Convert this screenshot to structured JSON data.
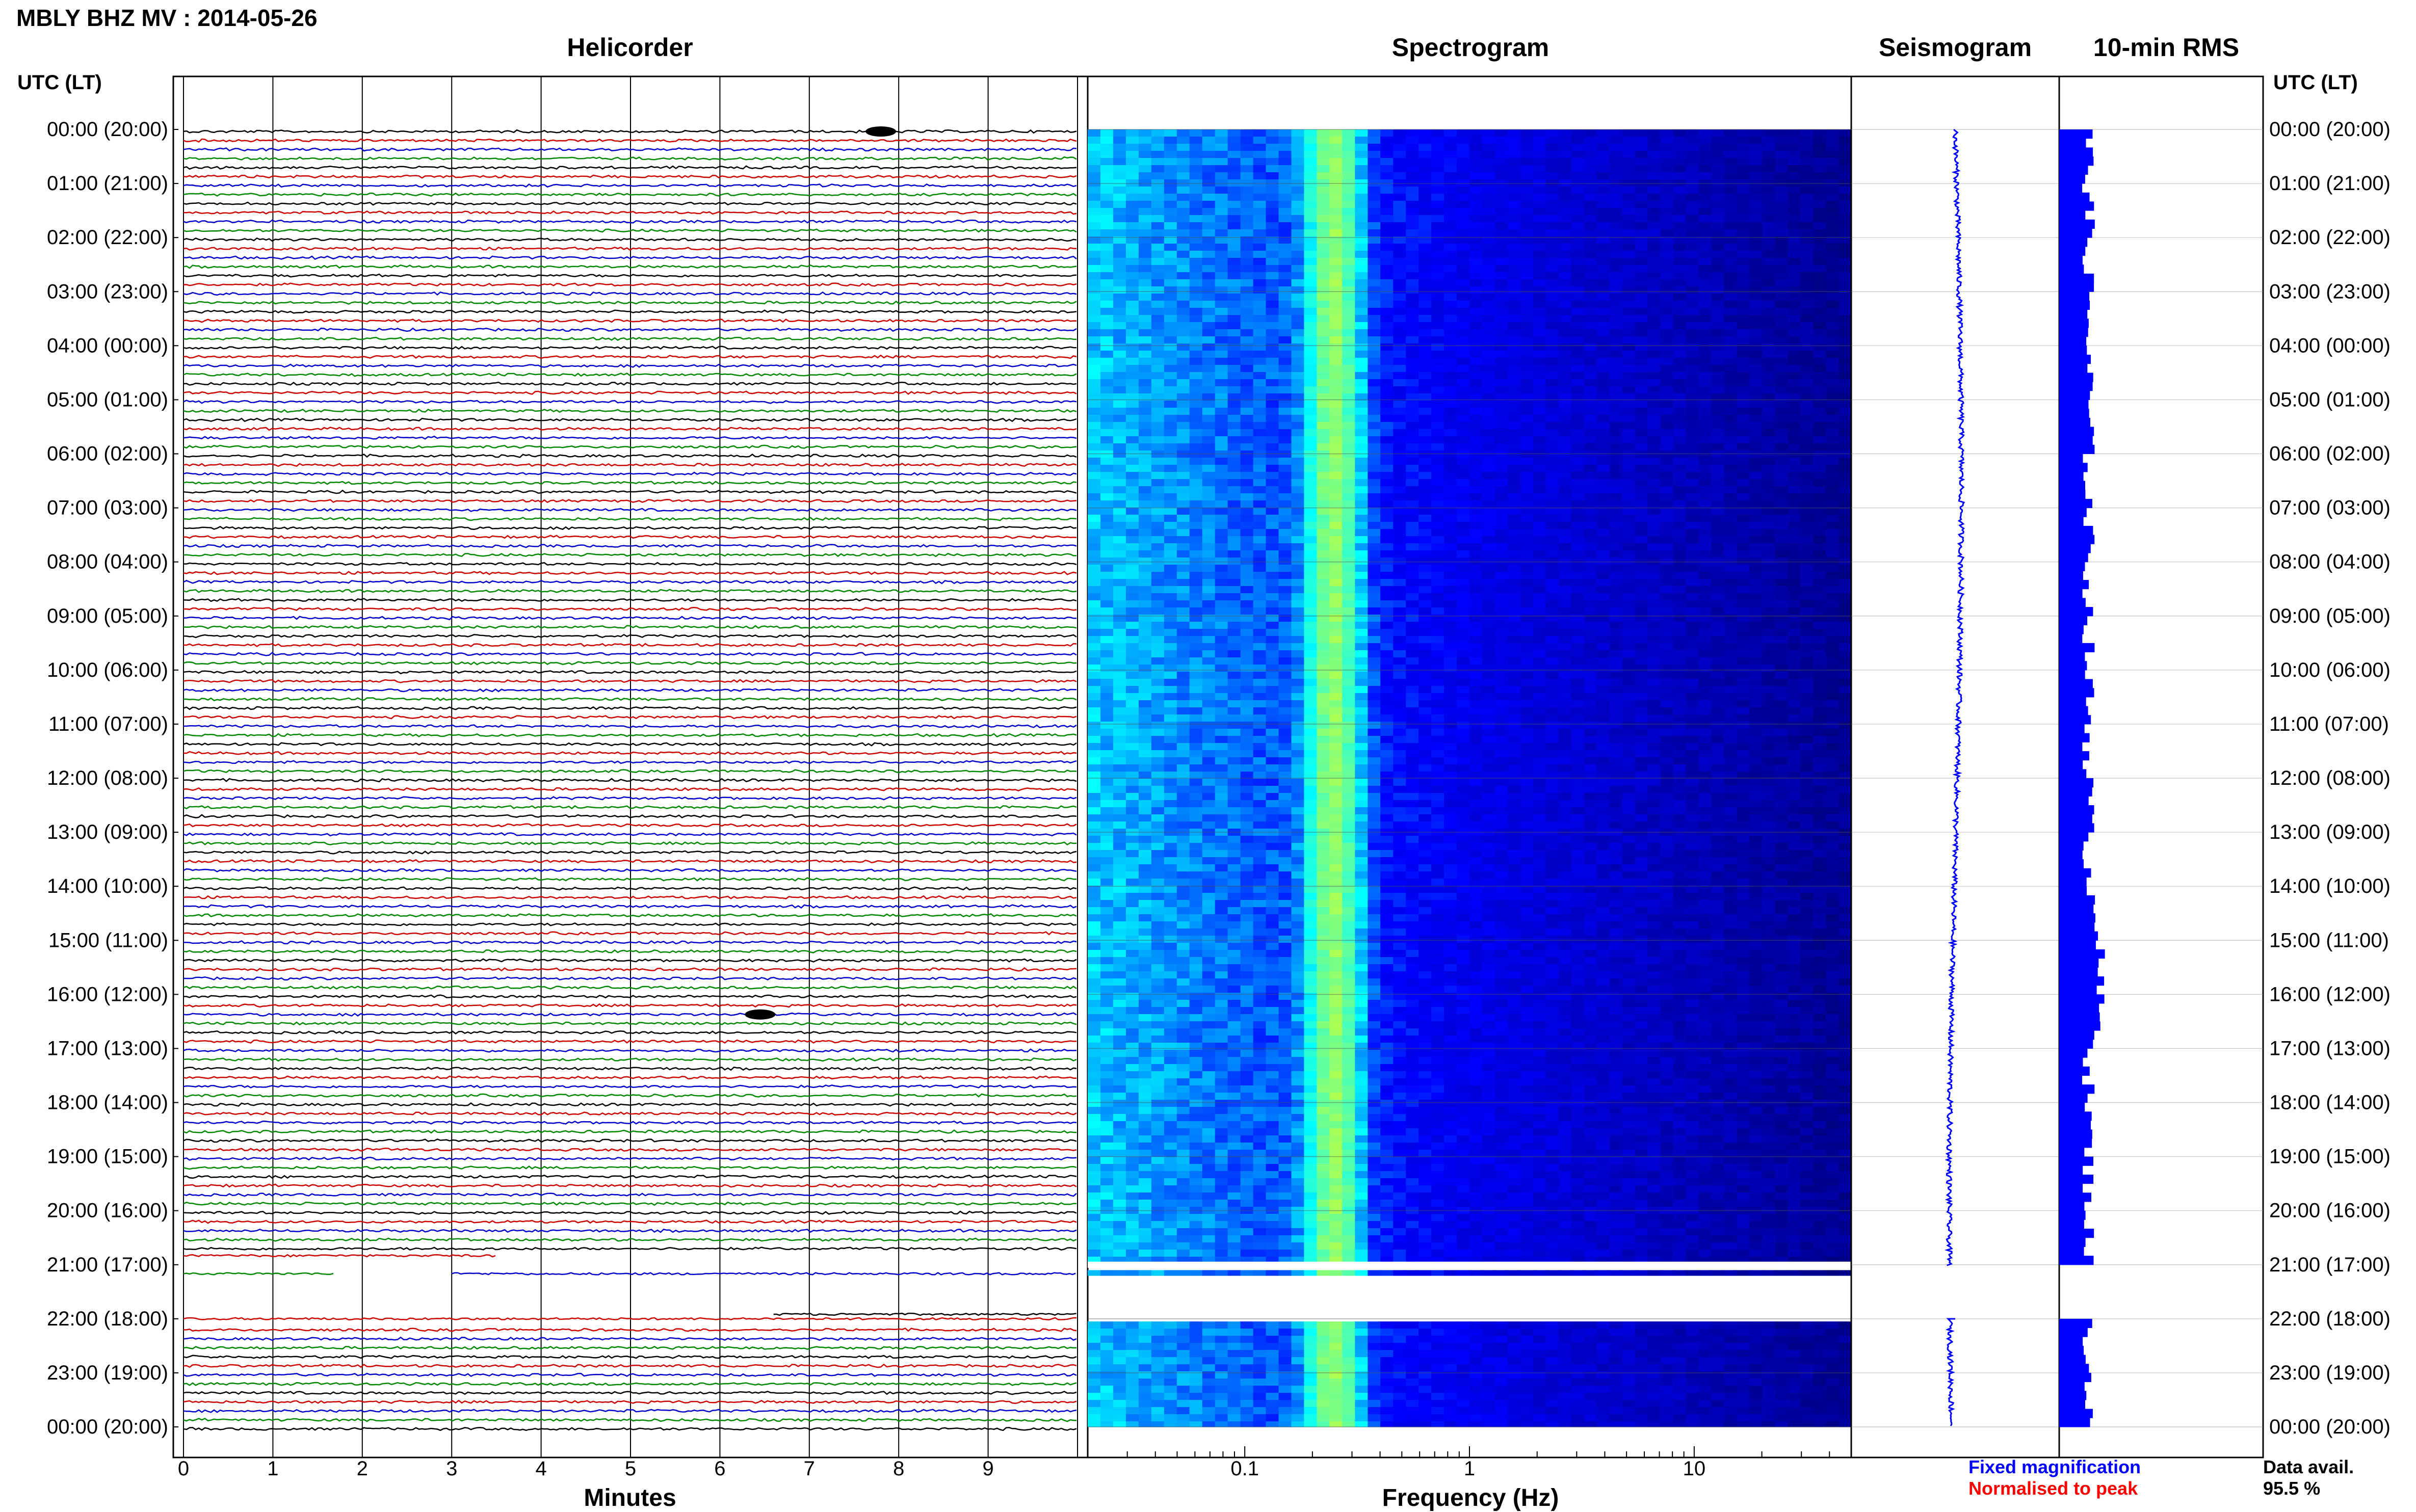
{
  "header": {
    "title": "MBLY BHZ MV : 2014-05-26"
  },
  "panels": {
    "helicorder": "Helicorder",
    "spectrogram": "Spectrogram",
    "seismogram": "Seismogram",
    "rms": "10-min RMS"
  },
  "axis": {
    "utc_header": "UTC (LT)",
    "utc_header_right": "UTC (LT)",
    "x_helicorder_label": "Minutes",
    "x_spectrogram_label": "Frequency (Hz)"
  },
  "footer": {
    "fixed_magnification": "Fixed magnification",
    "normalised_to_peak": "Normalised to peak",
    "data_avail_label": "Data avail.",
    "data_avail_value": "95.5 %"
  },
  "colors": {
    "trace_colors": [
      "#000000",
      "#cc0000",
      "#0000cc",
      "#008800"
    ],
    "fixed_magnification": "#0000ff",
    "normalised_to_peak": "#ff0000",
    "rms_bar": "#0000ff",
    "seismogram": "#0000ff"
  },
  "chart_data": [
    {
      "type": "line",
      "title": "Helicorder",
      "xlabel": "Minutes",
      "xlim": [
        0,
        10
      ],
      "x_ticks": [
        "0",
        "1",
        "2",
        "3",
        "4",
        "5",
        "6",
        "7",
        "8",
        "9"
      ],
      "rows_per_hour": 6,
      "y_ticks": [
        "00:00 (20:00)",
        "01:00 (21:00)",
        "02:00 (22:00)",
        "03:00 (23:00)",
        "04:00 (00:00)",
        "05:00 (01:00)",
        "06:00 (02:00)",
        "07:00 (03:00)",
        "08:00 (04:00)",
        "09:00 (05:00)",
        "10:00 (06:00)",
        "11:00 (07:00)",
        "12:00 (08:00)",
        "13:00 (09:00)",
        "14:00 (10:00)",
        "15:00 (11:00)",
        "16:00 (12:00)",
        "17:00 (13:00)",
        "18:00 (14:00)",
        "19:00 (15:00)",
        "20:00 (16:00)",
        "21:00 (17:00)",
        "22:00 (18:00)",
        "23:00 (19:00)",
        "00:00 (20:00)"
      ],
      "data_gap_utc": [
        "21:00",
        "22:00"
      ],
      "events": [
        {
          "time_utc": "00:00",
          "minute": 7.8,
          "note": "large amplitude event"
        },
        {
          "time_utc": "16:20",
          "minute": 6.45,
          "note": "spike"
        }
      ]
    },
    {
      "type": "heatmap",
      "title": "Spectrogram",
      "xlabel": "Frequency (Hz)",
      "x_scale": "log",
      "xlim": [
        0.02,
        50
      ],
      "x_ticks": [
        "0.1",
        "1",
        "10"
      ],
      "colormap": "jet",
      "dominant_band_hz": [
        0.2,
        0.3
      ],
      "data_gap_utc": [
        "21:00",
        "22:00"
      ]
    },
    {
      "type": "line",
      "title": "Seismogram",
      "data_gap_utc": [
        "21:00",
        "22:00"
      ]
    },
    {
      "type": "bar",
      "title": "10-min RMS",
      "orientation": "horizontal",
      "data_gap_utc": [
        "21:00",
        "22:00"
      ]
    }
  ]
}
